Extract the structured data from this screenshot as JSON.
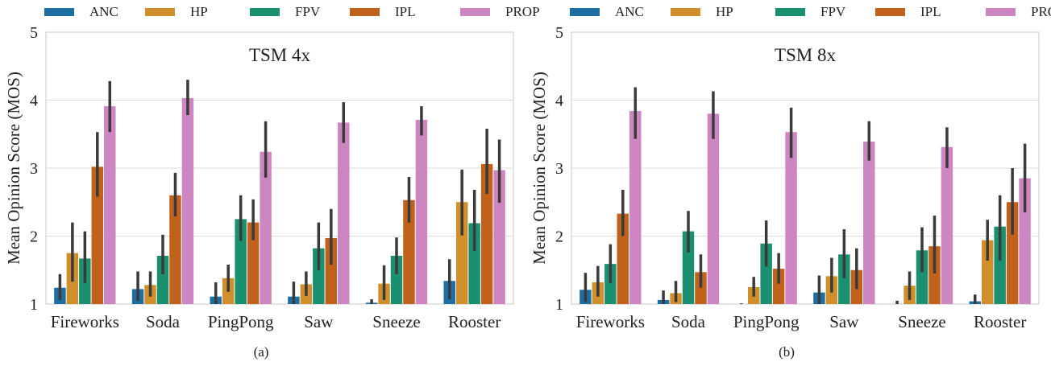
{
  "legend": {
    "items": [
      {
        "label": "ANC",
        "color": "#1f6ea3"
      },
      {
        "label": "HP",
        "color": "#d08f2a"
      },
      {
        "label": "FPV",
        "color": "#1b9070"
      },
      {
        "label": "IPL",
        "color": "#c0611c"
      },
      {
        "label": "PROP",
        "color": "#ce86c2"
      }
    ]
  },
  "captions": {
    "a": "(a)",
    "b": "(b)"
  },
  "chart_data": [
    {
      "type": "bar",
      "title": "TSM 4x",
      "ylabel": "Mean Opinion Score (MOS)",
      "xlabel": "",
      "ylim": [
        1,
        5
      ],
      "yticks": [
        1,
        2,
        3,
        4,
        5
      ],
      "grid": true,
      "legend_position": "top",
      "categories": [
        "Fireworks",
        "Soda",
        "PingPong",
        "Saw",
        "Sneeze",
        "Rooster"
      ],
      "series": [
        {
          "name": "ANC",
          "values": [
            1.24,
            1.22,
            1.11,
            1.11,
            1.02,
            1.34
          ],
          "err_low": [
            1.06,
            1.05,
            1.0,
            1.0,
            1.0,
            1.07
          ],
          "err_high": [
            1.44,
            1.48,
            1.32,
            1.33,
            1.07,
            1.66
          ]
        },
        {
          "name": "HP",
          "values": [
            1.75,
            1.28,
            1.38,
            1.29,
            1.3,
            2.5
          ],
          "err_low": [
            1.33,
            1.11,
            1.18,
            1.12,
            1.06,
            2.01
          ],
          "err_high": [
            2.2,
            1.48,
            1.58,
            1.48,
            1.57,
            2.98
          ]
        },
        {
          "name": "FPV",
          "values": [
            1.67,
            1.71,
            2.25,
            1.82,
            1.71,
            2.19
          ],
          "err_low": [
            1.31,
            1.44,
            1.93,
            1.5,
            1.44,
            1.78
          ],
          "err_high": [
            2.07,
            2.02,
            2.6,
            2.2,
            1.98,
            2.68
          ]
        },
        {
          "name": "IPL",
          "values": [
            3.02,
            2.6,
            2.2,
            1.97,
            2.53,
            3.06
          ],
          "err_low": [
            2.58,
            2.29,
            1.94,
            1.58,
            2.2,
            2.62
          ],
          "err_high": [
            3.53,
            2.93,
            2.54,
            2.4,
            2.87,
            3.58
          ]
        },
        {
          "name": "PROP",
          "values": [
            3.91,
            4.03,
            3.24,
            3.67,
            3.71,
            2.97
          ],
          "err_low": [
            3.53,
            3.78,
            2.86,
            3.37,
            3.48,
            2.49
          ],
          "err_high": [
            4.28,
            4.3,
            3.69,
            3.97,
            3.91,
            3.42
          ]
        }
      ]
    },
    {
      "type": "bar",
      "title": "TSM 8x",
      "ylabel": "Mean Opinion Score (MOS)",
      "xlabel": "",
      "ylim": [
        1,
        5
      ],
      "yticks": [
        1,
        2,
        3,
        4,
        5
      ],
      "grid": true,
      "legend_position": "top",
      "categories": [
        "Fireworks",
        "Soda",
        "PingPong",
        "Saw",
        "Sneeze",
        "Rooster"
      ],
      "series": [
        {
          "name": "ANC",
          "values": [
            1.21,
            1.06,
            1.0,
            1.17,
            1.0,
            1.04
          ],
          "err_low": [
            1.03,
            1.0,
            1.0,
            1.0,
            1.0,
            1.0
          ],
          "err_high": [
            1.46,
            1.2,
            1.01,
            1.42,
            1.05,
            1.14
          ]
        },
        {
          "name": "HP",
          "values": [
            1.32,
            1.16,
            1.25,
            1.41,
            1.27,
            1.94
          ],
          "err_low": [
            1.11,
            1.03,
            1.11,
            1.17,
            1.06,
            1.64
          ],
          "err_high": [
            1.56,
            1.34,
            1.4,
            1.68,
            1.48,
            2.24
          ]
        },
        {
          "name": "FPV",
          "values": [
            1.59,
            2.07,
            1.89,
            1.73,
            1.79,
            2.14
          ],
          "err_low": [
            1.31,
            1.76,
            1.55,
            1.38,
            1.47,
            1.64
          ],
          "err_high": [
            1.88,
            2.37,
            2.23,
            2.1,
            2.13,
            2.6
          ]
        },
        {
          "name": "IPL",
          "values": [
            2.33,
            1.47,
            1.52,
            1.5,
            1.85,
            2.5
          ],
          "err_low": [
            2.0,
            1.24,
            1.3,
            1.22,
            1.45,
            2.02
          ],
          "err_high": [
            2.68,
            1.73,
            1.75,
            1.82,
            2.3,
            3.0
          ]
        },
        {
          "name": "PROP",
          "values": [
            3.84,
            3.8,
            3.53,
            3.39,
            3.31,
            2.85
          ],
          "err_low": [
            3.43,
            3.43,
            3.15,
            3.11,
            3.0,
            2.35
          ],
          "err_high": [
            4.19,
            4.13,
            3.89,
            3.69,
            3.6,
            3.36
          ]
        }
      ]
    }
  ]
}
